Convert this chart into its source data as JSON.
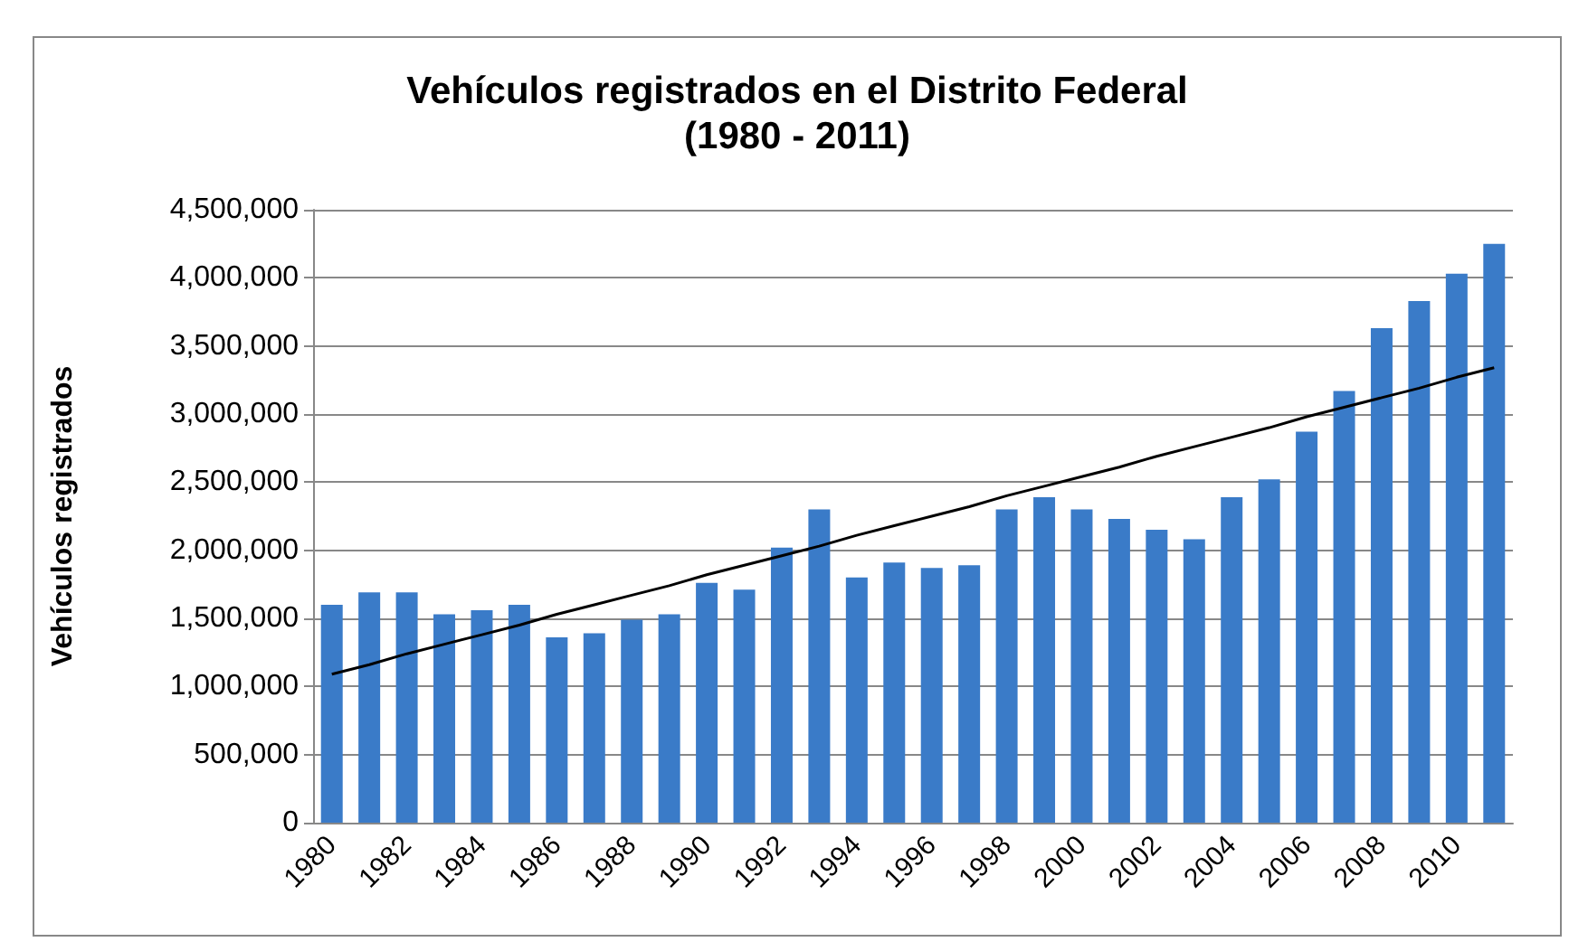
{
  "chart_data": {
    "type": "bar",
    "title": "Vehículos registrados en el Distrito Federal\n(1980 - 2011)",
    "ylabel": "Vehículos registrados",
    "categories": [
      "1980",
      null,
      "1982",
      null,
      "1984",
      null,
      "1986",
      null,
      "1988",
      null,
      "1990",
      null,
      "1992",
      null,
      "1994",
      null,
      "1996",
      null,
      "1998",
      null,
      "2000",
      null,
      "2002",
      null,
      "2004",
      null,
      "2006",
      null,
      "2008",
      null,
      "2010",
      null
    ],
    "series": [
      {
        "color": "#3a7bc8",
        "values": [
          1600000,
          1690000,
          1690000,
          1530000,
          1560000,
          1600000,
          1360000,
          1390000,
          1490000,
          1530000,
          1760000,
          1710000,
          2020000,
          2300000,
          1800000,
          1910000,
          1870000,
          1890000,
          2300000,
          2390000,
          2300000,
          2230000,
          2150000,
          2080000,
          2390000,
          2520000,
          2870000,
          3170000,
          3630000,
          3830000,
          4030000,
          4250000
        ]
      },
      {
        "type": "line",
        "color": "#000000",
        "values": [
          1090000,
          1160000,
          1240000,
          1310000,
          1380000,
          1450000,
          1530000,
          1600000,
          1670000,
          1740000,
          1820000,
          1890000,
          1960000,
          2030000,
          2110000,
          2180000,
          2250000,
          2320000,
          2400000,
          2470000,
          2540000,
          2610000,
          2690000,
          2760000,
          2830000,
          2900000,
          2980000,
          3050000,
          3120000,
          3190000,
          3270000,
          3340000
        ]
      }
    ],
    "ylim": [
      0,
      4500000
    ],
    "yticks": [
      {
        "value": 0,
        "label": "0"
      },
      {
        "value": 500000,
        "label": "500,000"
      },
      {
        "value": 1000000,
        "label": "1,000,000"
      },
      {
        "value": 1500000,
        "label": "1,500,000"
      },
      {
        "value": 2000000,
        "label": "2,000,000"
      },
      {
        "value": 2500000,
        "label": "2,500,000"
      },
      {
        "value": 3000000,
        "label": "3,000,000"
      },
      {
        "value": 3500000,
        "label": "3,500,000"
      },
      {
        "value": 4000000,
        "label": "4,000,000"
      },
      {
        "value": 4500000,
        "label": "4,500,000"
      }
    ],
    "grid": "y",
    "marker": "none",
    "line_style": "solid"
  }
}
